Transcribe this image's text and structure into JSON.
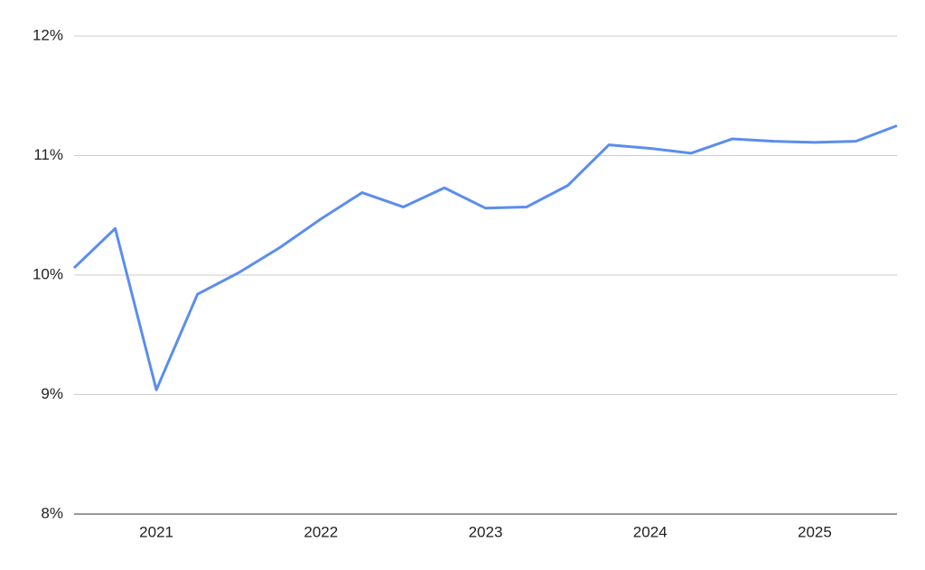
{
  "chart_data": {
    "type": "line",
    "categories": [
      null,
      null,
      "2021",
      null,
      null,
      null,
      "2022",
      null,
      null,
      null,
      "2023",
      null,
      null,
      null,
      "2024",
      null,
      null,
      null,
      "2025",
      null,
      null
    ],
    "series": [
      {
        "color": "#5b8def",
        "values": [
          10.06,
          10.39,
          9.04,
          9.84,
          10.02,
          10.23,
          10.47,
          10.69,
          10.57,
          10.73,
          10.56,
          10.57,
          10.75,
          11.09,
          11.06,
          11.02,
          11.14,
          11.12,
          11.11,
          11.12,
          11.25
        ]
      }
    ],
    "ylim": [
      8,
      12
    ],
    "yticks": [
      {
        "value": 8,
        "label": "8%"
      },
      {
        "value": 9,
        "label": "9%"
      },
      {
        "value": 10,
        "label": "10%"
      },
      {
        "value": 11,
        "label": "11%"
      },
      {
        "value": 12,
        "label": "12%"
      }
    ],
    "grid": true
  }
}
